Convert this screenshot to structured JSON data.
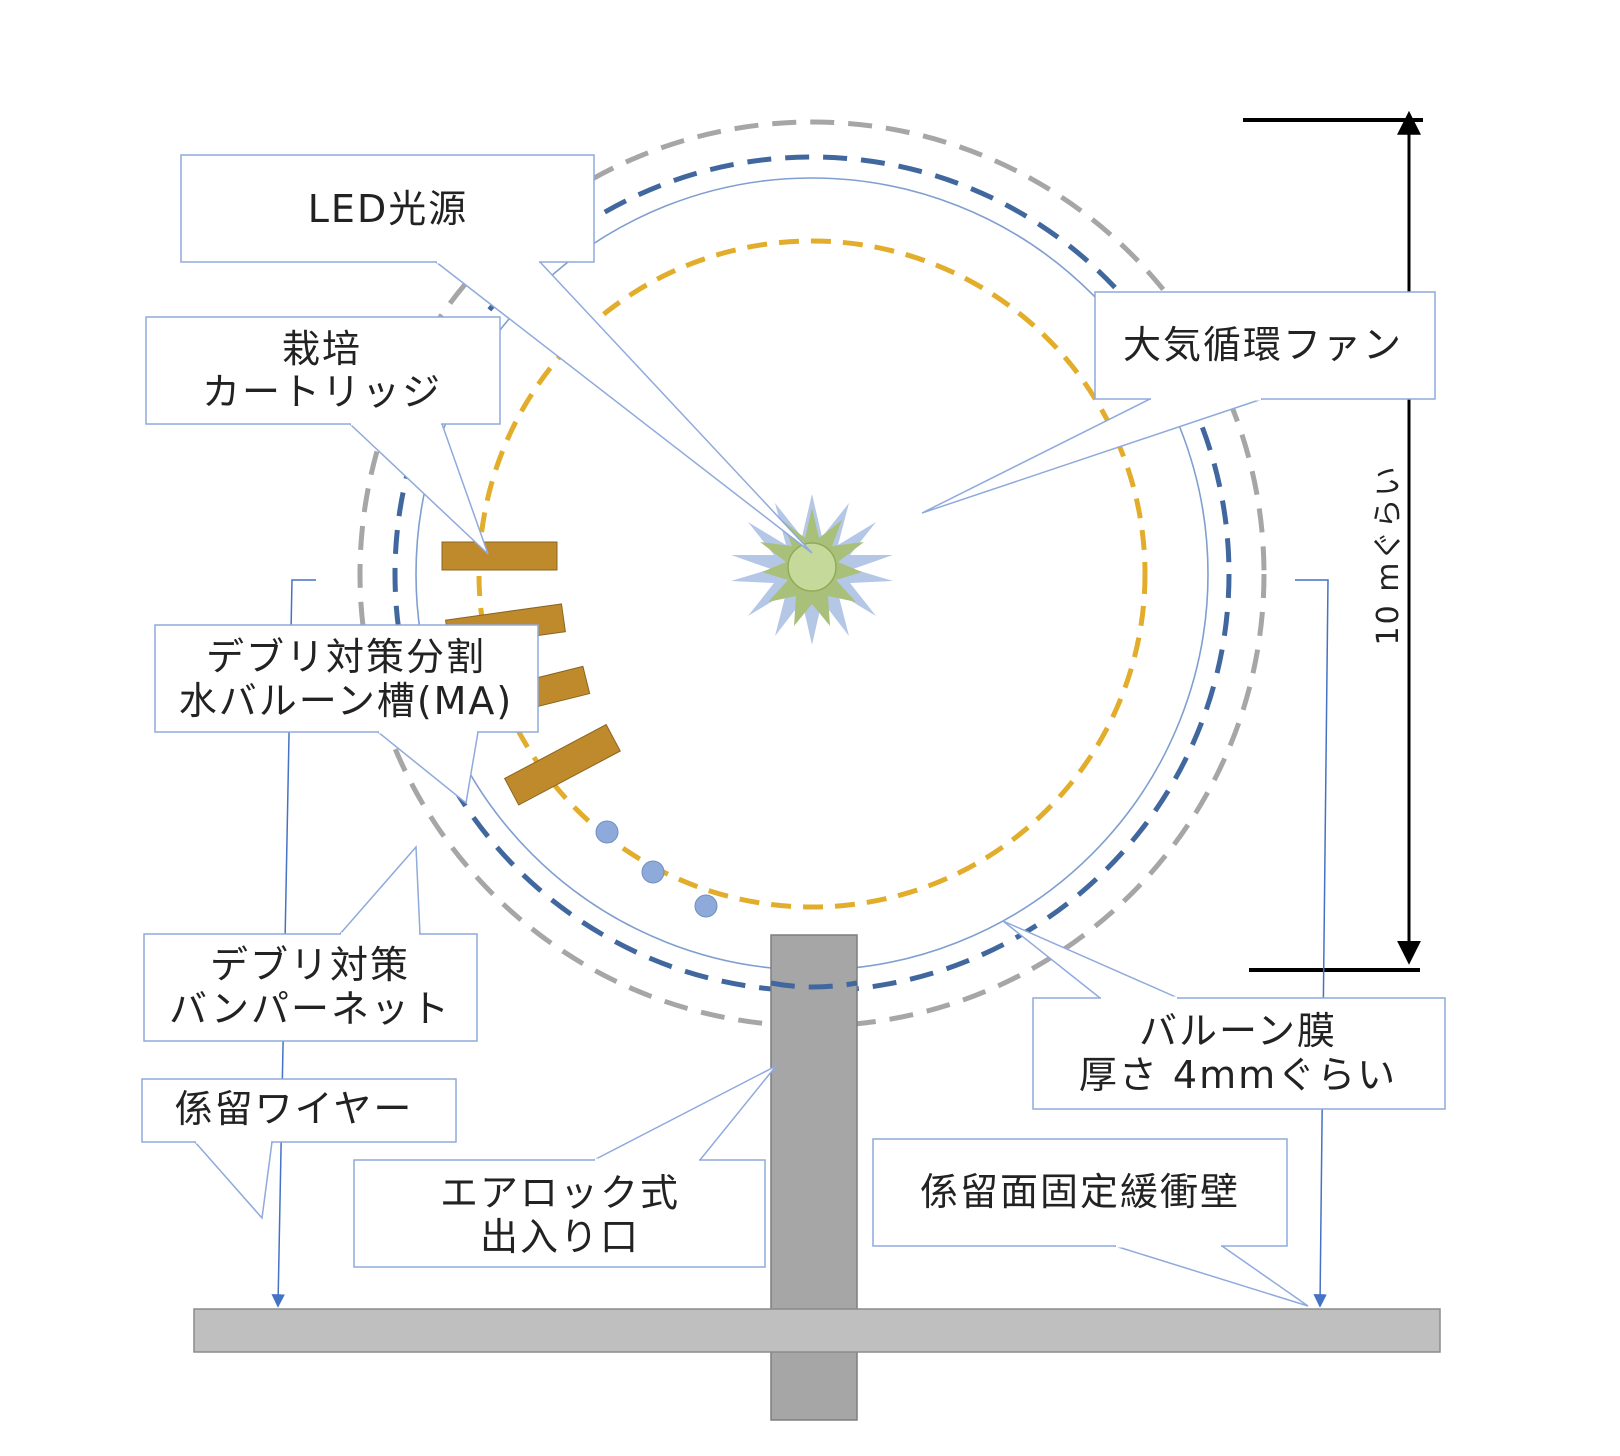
{
  "colors": {
    "outer_ring": "#a6a6a6",
    "blue_ring": "#41679f",
    "inner_ring": "#e3ad2c",
    "membrane": "#7f9fd0",
    "cartridge": "#bf8a2c",
    "water_balloon": "#8eaadb",
    "led_glow": "#b4c7e7",
    "led_core": "#c5d99a",
    "airlock": "#a6a6a6",
    "base_plate": "#bfbfbf",
    "callout_border": "#8faadc",
    "leader_line": "#4472c4"
  },
  "labels": {
    "led": "LED光源",
    "cartridge_line1": "栽培",
    "cartridge_line2": "カートリッジ",
    "fan": "大気循環ファン",
    "water_line1": "デブリ対策分割",
    "water_line2": "水バルーン槽(MA)",
    "bumper_line1": "デブリ対策",
    "bumper_line2": "バンパーネット",
    "wire": "係留ワイヤー",
    "airlock_line1": "エアロック式",
    "airlock_line2": "出入り口",
    "membrane_line1": "バルーン膜",
    "membrane_line2": "厚さ 4mmぐらい",
    "wall": "係留面固定緩衝壁",
    "dimension": "10 mぐらい"
  },
  "icons": {
    "light": "sun-burst-icon",
    "balloon": "circle-dot-icon"
  }
}
